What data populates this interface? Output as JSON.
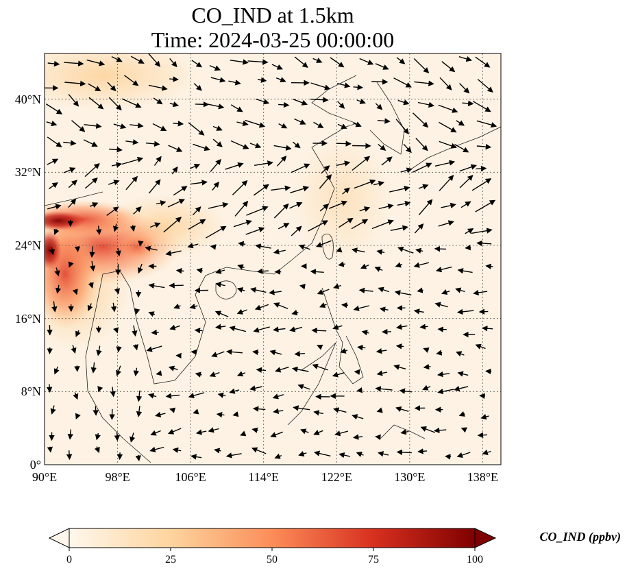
{
  "title": "CO_IND at 1.5km",
  "subtitle": "Time: 2024-03-25 00:00:00",
  "map": {
    "lon_range": [
      90,
      140
    ],
    "lat_range": [
      0,
      45
    ],
    "lon_ticks": [
      {
        "value": 90,
        "label": "90°E"
      },
      {
        "value": 98,
        "label": "98°E"
      },
      {
        "value": 106,
        "label": "106°E"
      },
      {
        "value": 114,
        "label": "114°E"
      },
      {
        "value": 122,
        "label": "122°E"
      },
      {
        "value": 130,
        "label": "130°E"
      },
      {
        "value": 138,
        "label": "138°E"
      }
    ],
    "lat_ticks": [
      {
        "value": 0,
        "label": "0°"
      },
      {
        "value": 8,
        "label": "8°N"
      },
      {
        "value": 16,
        "label": "16°N"
      },
      {
        "value": 24,
        "label": "24°N"
      },
      {
        "value": 32,
        "label": "32°N"
      },
      {
        "value": 40,
        "label": "40°N"
      }
    ],
    "gridlines": true
  },
  "colorbar": {
    "label": "CO_IND (ppbv)",
    "ticks": [
      "0",
      "25",
      "50",
      "75",
      "100"
    ],
    "colormap": "OrRd",
    "colors": [
      "#fff7ec",
      "#fdd49e",
      "#fc8d59",
      "#d7301f",
      "#7f0000"
    ],
    "extend": "both"
  }
}
